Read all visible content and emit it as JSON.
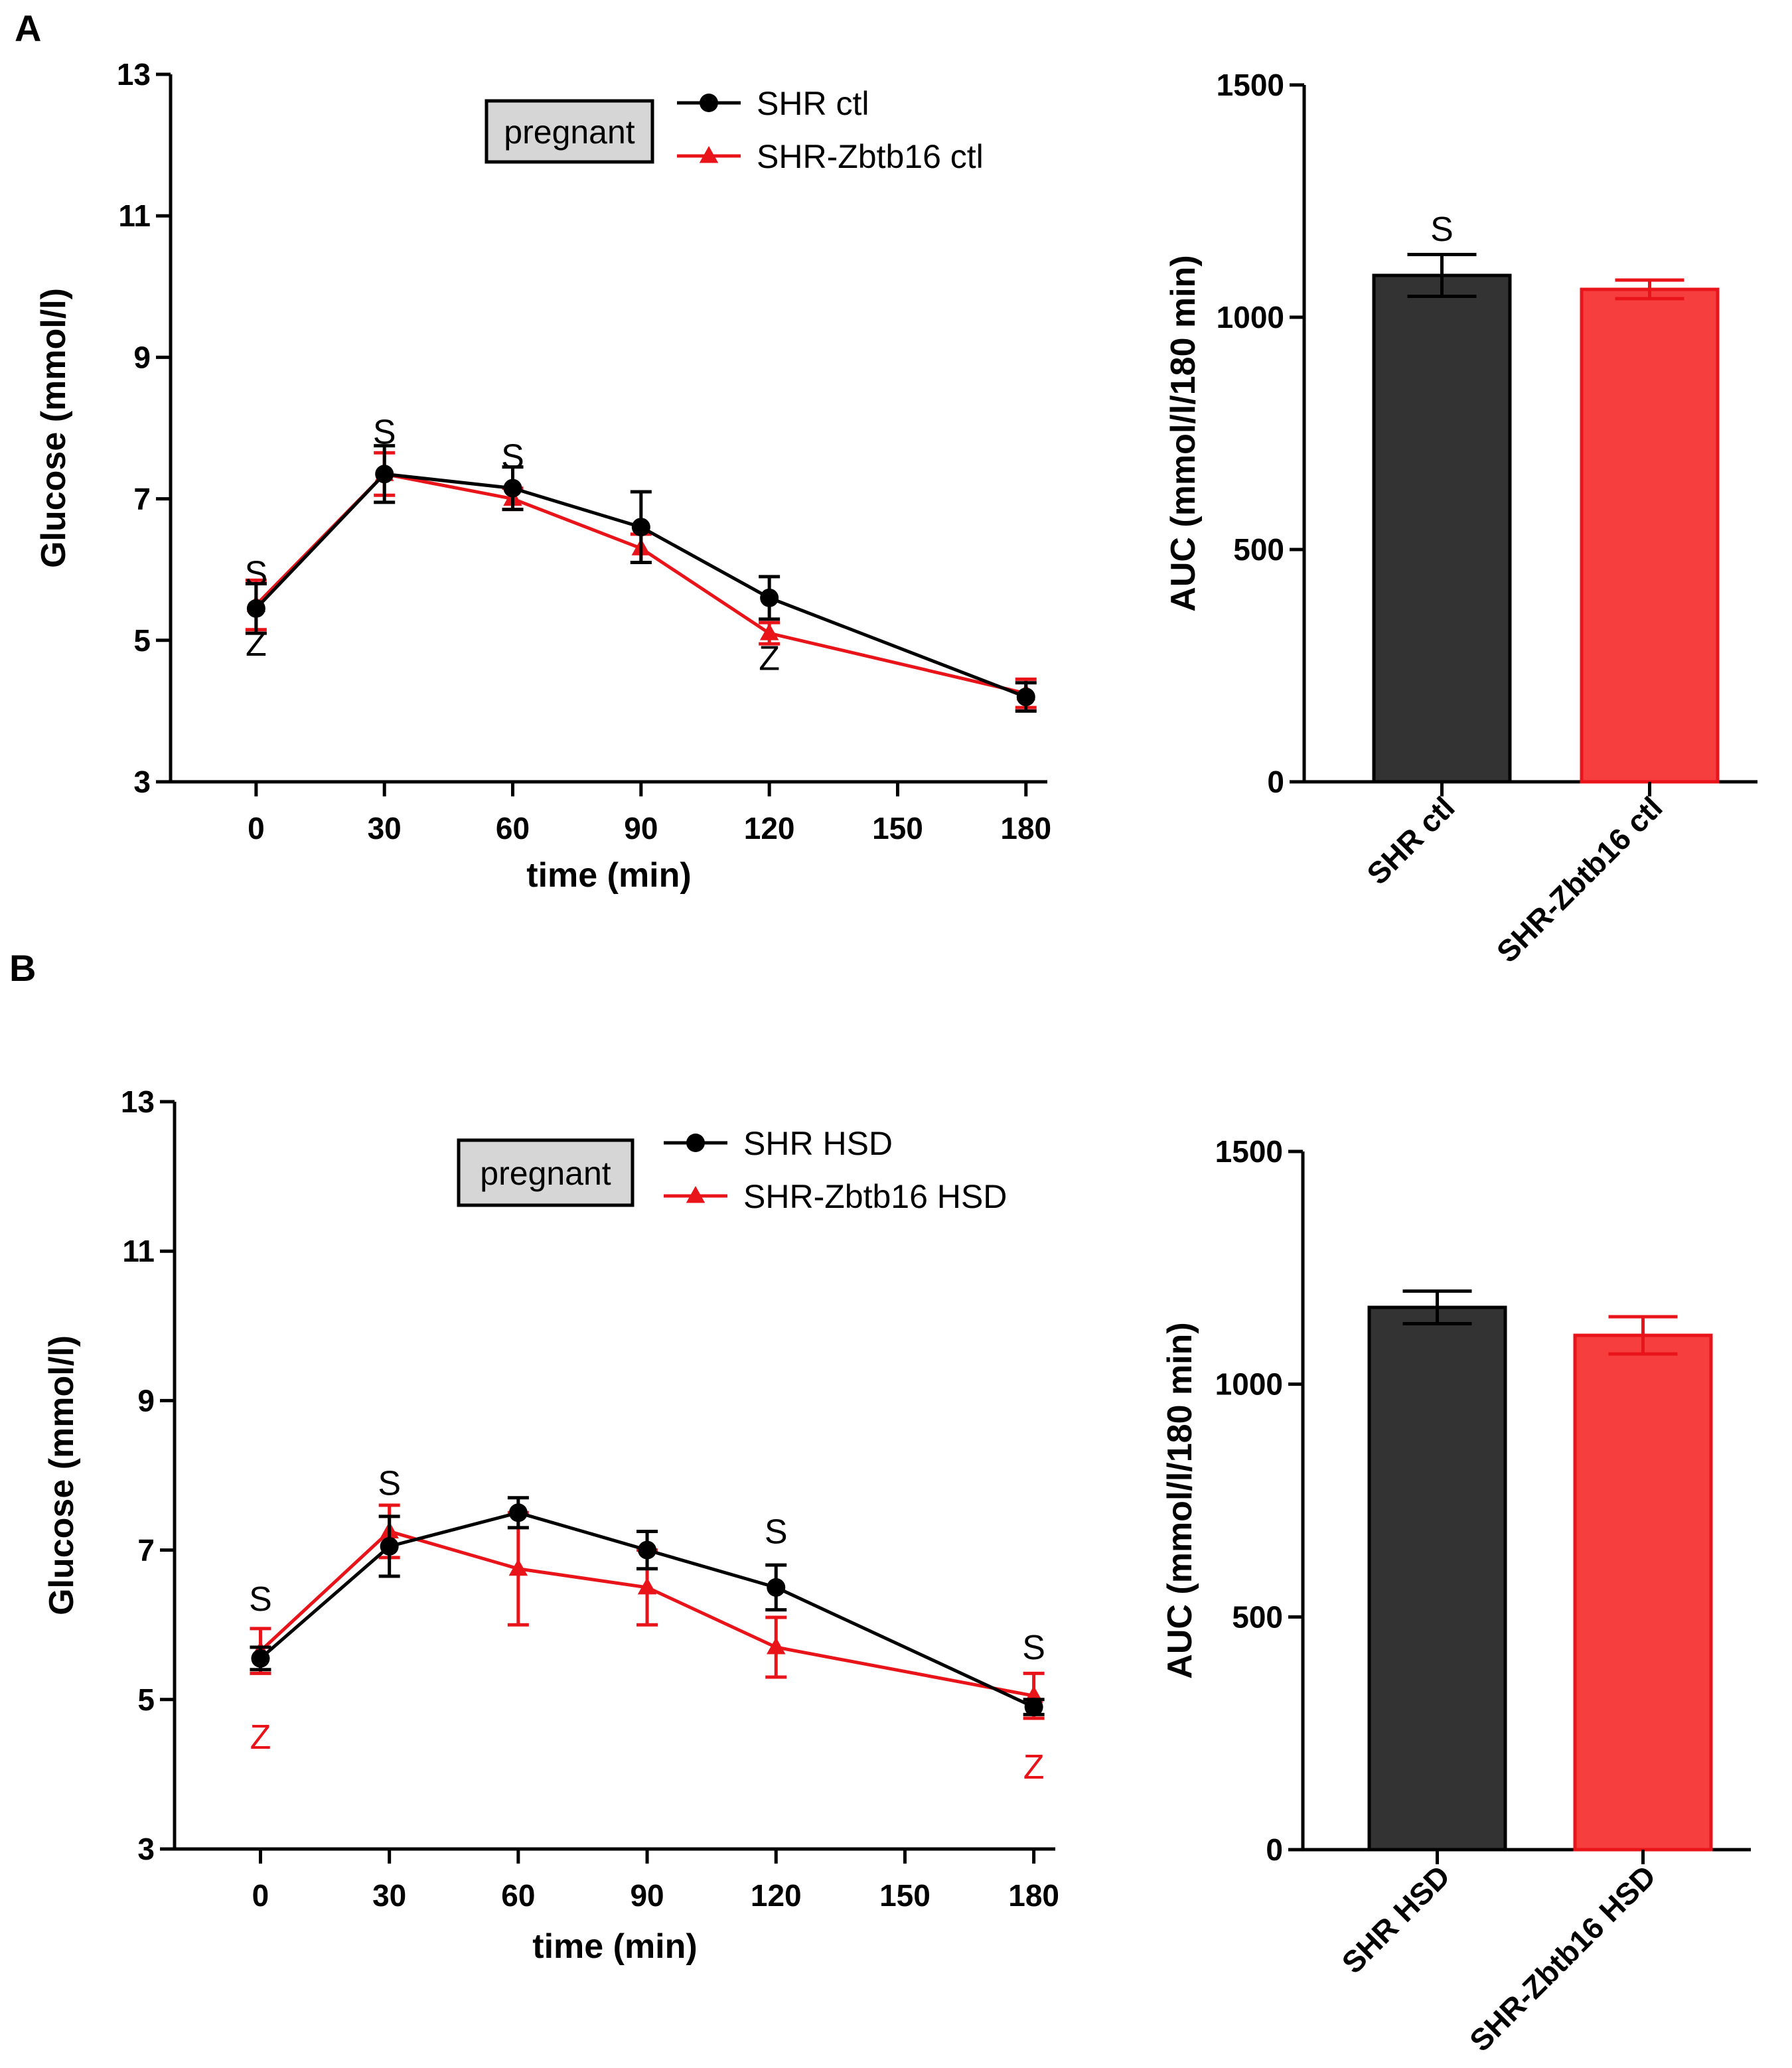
{
  "panels": [
    {
      "letter": "A",
      "line_chart": {
        "badge": "pregnant",
        "legend": [
          {
            "label": "SHR ctl",
            "color": "#000000",
            "marker": "circle"
          },
          {
            "label": "SHR-Zbtb16 ctl",
            "color": "#e8141a",
            "marker": "triangle"
          }
        ],
        "annotations": [
          {
            "text": "S",
            "x": 0,
            "y": 5.95,
            "color": "#000000"
          },
          {
            "text": "Z",
            "x": 0,
            "y": 4.95,
            "color": "#000000"
          },
          {
            "text": "S",
            "x": 30,
            "y": 7.95,
            "color": "#000000"
          },
          {
            "text": "S",
            "x": 60,
            "y": 7.6,
            "color": "#000000"
          },
          {
            "text": "Z",
            "x": 120,
            "y": 4.75,
            "color": "#000000"
          }
        ]
      },
      "bar_chart": {
        "annotations": [
          {
            "text": "S",
            "bar": 0,
            "y": 1190,
            "color": "#000000"
          }
        ]
      }
    },
    {
      "letter": "B",
      "line_chart": {
        "badge": "pregnant",
        "legend": [
          {
            "label": "SHR HSD",
            "color": "#000000",
            "marker": "circle"
          },
          {
            "label": "SHR-Zbtb16 HSD",
            "color": "#e8141a",
            "marker": "triangle"
          }
        ],
        "annotations": [
          {
            "text": "S",
            "x": 0,
            "y": 6.35,
            "color": "#000000"
          },
          {
            "text": "Z",
            "x": 0,
            "y": 4.5,
            "color": "#e8141a"
          },
          {
            "text": "S",
            "x": 30,
            "y": 7.9,
            "color": "#000000"
          },
          {
            "text": "S",
            "x": 120,
            "y": 7.25,
            "color": "#000000"
          },
          {
            "text": "S",
            "x": 180,
            "y": 5.7,
            "color": "#000000"
          },
          {
            "text": "Z",
            "x": 180,
            "y": 4.1,
            "color": "#e8141a"
          }
        ]
      },
      "bar_chart": {
        "annotations": []
      }
    }
  ],
  "chart_data": [
    {
      "type": "line",
      "title": "",
      "xlabel": "time (min)",
      "ylabel": "Glucose (mmol/l)",
      "xlim": [
        -20,
        185
      ],
      "ylim": [
        3,
        13
      ],
      "x_ticks": [
        0,
        30,
        60,
        90,
        120,
        150,
        180
      ],
      "y_ticks": [
        3,
        5,
        7,
        9,
        11,
        13
      ],
      "legend_position": "top-center",
      "grid": false,
      "series": [
        {
          "name": "SHR ctl",
          "color": "#000000",
          "marker": "circle",
          "x": [
            0,
            30,
            60,
            90,
            120,
            180
          ],
          "y": [
            5.45,
            7.35,
            7.15,
            6.6,
            5.6,
            4.2
          ],
          "err": [
            0.35,
            0.4,
            0.3,
            0.5,
            0.3,
            0.2
          ]
        },
        {
          "name": "SHR-Zbtb16 ctl",
          "color": "#e8141a",
          "marker": "triangle",
          "x": [
            0,
            30,
            60,
            90,
            120,
            180
          ],
          "y": [
            5.5,
            7.35,
            7.0,
            6.3,
            5.1,
            4.25
          ],
          "err": [
            0.35,
            0.3,
            0.15,
            0.2,
            0.15,
            0.2
          ]
        }
      ]
    },
    {
      "type": "bar",
      "title": "",
      "xlabel": "",
      "ylabel": "AUC (mmol/l/180 min)",
      "ylim": [
        0,
        1500
      ],
      "y_ticks": [
        0,
        500,
        1000,
        1500
      ],
      "categories": [
        "SHR ctl",
        "SHR-Zbtb16 ctl"
      ],
      "values": [
        1090,
        1060
      ],
      "err": [
        45,
        20
      ],
      "colors": [
        "#333333",
        "#f73e3e"
      ],
      "edge_colors": [
        "#000000",
        "#e8141a"
      ]
    },
    {
      "type": "line",
      "title": "",
      "xlabel": "time (min)",
      "ylabel": "Glucose (mmol/l)",
      "xlim": [
        -20,
        185
      ],
      "ylim": [
        3,
        13
      ],
      "x_ticks": [
        0,
        30,
        60,
        90,
        120,
        150,
        180
      ],
      "y_ticks": [
        3,
        5,
        7,
        9,
        11,
        13
      ],
      "legend_position": "top-center",
      "grid": false,
      "series": [
        {
          "name": "SHR HSD",
          "color": "#000000",
          "marker": "circle",
          "x": [
            0,
            30,
            60,
            90,
            120,
            180
          ],
          "y": [
            5.55,
            7.05,
            7.5,
            7.0,
            6.5,
            4.9
          ],
          "err": [
            0.15,
            0.4,
            0.2,
            0.25,
            0.3,
            0.1
          ]
        },
        {
          "name": "SHR-Zbtb16 HSD",
          "color": "#e8141a",
          "marker": "triangle",
          "x": [
            0,
            30,
            60,
            90,
            120,
            180
          ],
          "y": [
            5.65,
            7.25,
            6.75,
            6.5,
            5.7,
            5.05
          ],
          "err": [
            0.3,
            0.35,
            0.75,
            0.5,
            0.4,
            0.3
          ]
        }
      ]
    },
    {
      "type": "bar",
      "title": "",
      "xlabel": "",
      "ylabel": "AUC (mmol/l/180 min)",
      "ylim": [
        0,
        1500
      ],
      "y_ticks": [
        0,
        500,
        1000,
        1500
      ],
      "categories": [
        "SHR HSD",
        "SHR-Zbtb16 HSD"
      ],
      "values": [
        1165,
        1105
      ],
      "err": [
        35,
        40
      ],
      "colors": [
        "#333333",
        "#f73e3e"
      ],
      "edge_colors": [
        "#000000",
        "#e8141a"
      ]
    }
  ]
}
